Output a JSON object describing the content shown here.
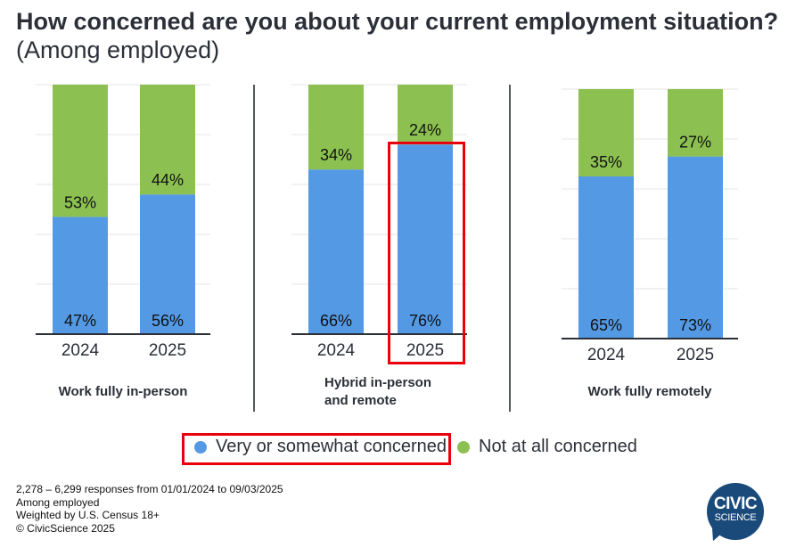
{
  "title": {
    "main": "How concerned are you about your current employment situation?",
    "sub": "(Among employed)"
  },
  "colors": {
    "concerned": "#5499e3",
    "not_concerned": "#8cc152",
    "highlight": "#e8000b",
    "logo": "#1a4a7a"
  },
  "legend": [
    {
      "label": "Very or somewhat concerned",
      "color": "#5499e3"
    },
    {
      "label": "Not at all concerned",
      "color": "#8cc152"
    }
  ],
  "chart_data": {
    "type": "bar",
    "stacked": true,
    "ylim": [
      0,
      100
    ],
    "grid": true,
    "legend_placement": "bottom",
    "panels": [
      {
        "title_lines": [
          "Work fully in-person"
        ],
        "categories": [
          "2024",
          "2025"
        ],
        "series": [
          {
            "name": "Very or somewhat concerned",
            "values": [
              47,
              56
            ]
          },
          {
            "name": "Not at all concerned",
            "values": [
              53,
              44
            ]
          }
        ]
      },
      {
        "title_lines": [
          "Hybrid in-person",
          "and remote"
        ],
        "categories": [
          "2024",
          "2025"
        ],
        "series": [
          {
            "name": "Very or somewhat concerned",
            "values": [
              66,
              76
            ]
          },
          {
            "name": "Not at all concerned",
            "values": [
              34,
              24
            ]
          }
        ]
      },
      {
        "title_lines": [
          "Work fully remotely"
        ],
        "categories": [
          "2024",
          "2025"
        ],
        "series": [
          {
            "name": "Very or somewhat concerned",
            "values": [
              65,
              73
            ]
          },
          {
            "name": "Not at all concerned",
            "values": [
              35,
              27
            ]
          }
        ]
      }
    ]
  },
  "notes": [
    "2,278 – 6,299 responses from 01/01/2024 to 09/03/2025",
    "Among employed",
    "Weighted by U.S. Census 18+",
    "© CivicScience 2025"
  ],
  "logo": {
    "line1": "CIVIC",
    "line2": "SCIENCE"
  }
}
